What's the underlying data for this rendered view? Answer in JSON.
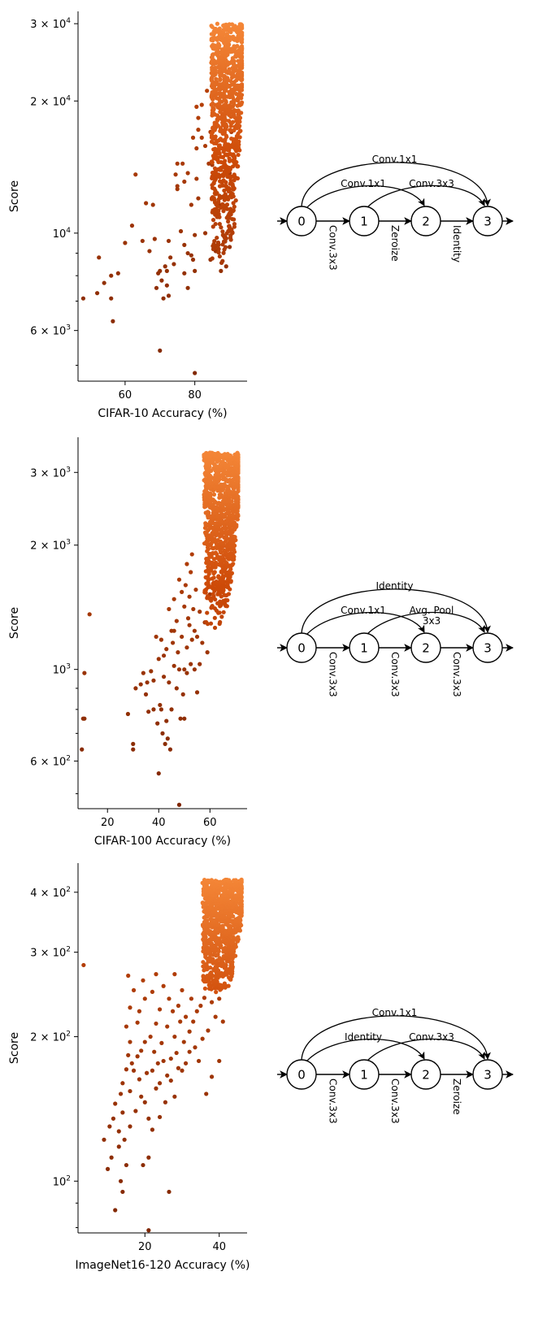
{
  "chart_data": [
    {
      "type": "scatter",
      "xlabel": "CIFAR-10 Accuracy (%)",
      "ylabel": "Score",
      "yscale": "log",
      "xlim": [
        46.5,
        95
      ],
      "ylim": [
        4600,
        32000
      ],
      "xticks": [
        {
          "v": 60,
          "label": "60"
        },
        {
          "v": 80,
          "label": "80"
        }
      ],
      "yticks": [
        {
          "v": 6000,
          "base": "6 × 10",
          "exp": "3"
        },
        {
          "v": 10000,
          "base": "10",
          "exp": "4"
        },
        {
          "v": 20000,
          "base": "2 × 10",
          "exp": "4"
        },
        {
          "v": 30000,
          "base": "3 × 10",
          "exp": "4"
        }
      ],
      "yminor": [
        5000,
        7000,
        8000,
        9000
      ],
      "cluster": {
        "x_range": [
          81,
          93.5
        ],
        "y_range": [
          8200,
          30000
        ]
      },
      "points": [
        [
          48,
          7100
        ],
        [
          52,
          7300
        ],
        [
          52.5,
          8800
        ],
        [
          54,
          7700
        ],
        [
          56,
          7100
        ],
        [
          56,
          8000
        ],
        [
          56.5,
          6300
        ],
        [
          58,
          8100
        ],
        [
          60,
          9500
        ],
        [
          62,
          10400
        ],
        [
          63,
          13600
        ],
        [
          65,
          9600
        ],
        [
          66,
          11700
        ],
        [
          67,
          9100
        ],
        [
          68,
          11600
        ],
        [
          68.5,
          9700
        ],
        [
          69,
          7500
        ],
        [
          69.5,
          8100
        ],
        [
          70,
          8200
        ],
        [
          70,
          5400
        ],
        [
          70.5,
          7800
        ],
        [
          71,
          7100
        ],
        [
          71.5,
          8400
        ],
        [
          72,
          8200
        ],
        [
          72,
          7600
        ],
        [
          72.5,
          7200
        ],
        [
          72.5,
          9600
        ],
        [
          73,
          8800
        ],
        [
          74,
          8500
        ],
        [
          74.5,
          13600
        ],
        [
          75,
          14400
        ],
        [
          75,
          12800
        ],
        [
          75,
          12600
        ],
        [
          76,
          10100
        ],
        [
          76.5,
          14400
        ],
        [
          77,
          9400
        ],
        [
          77,
          8100
        ],
        [
          77,
          13100
        ],
        [
          78,
          9000
        ],
        [
          78,
          7500
        ],
        [
          78,
          13700
        ],
        [
          79,
          8900
        ],
        [
          79,
          11600
        ],
        [
          79.5,
          8700
        ],
        [
          79.5,
          16500
        ],
        [
          80,
          9900
        ],
        [
          80,
          4800
        ],
        [
          80,
          8200
        ],
        [
          80.5,
          15600
        ],
        [
          80.5,
          19400
        ],
        [
          80.5,
          13300
        ],
        [
          81,
          12000
        ],
        [
          81,
          18300
        ],
        [
          81,
          17200
        ],
        [
          82,
          19600
        ],
        [
          82,
          16500
        ],
        [
          83,
          10000
        ],
        [
          83,
          15800
        ],
        [
          83.5,
          21100
        ],
        [
          84,
          14400
        ],
        [
          84.5,
          17000
        ],
        [
          84.5,
          8700
        ],
        [
          85,
          20300
        ],
        [
          85,
          14300
        ],
        [
          86,
          9100
        ],
        [
          86,
          13600
        ],
        [
          86,
          17400
        ],
        [
          86.5,
          13600
        ],
        [
          87,
          11600
        ],
        [
          87,
          19300
        ],
        [
          87,
          14000
        ],
        [
          87.5,
          8200
        ],
        [
          88,
          16900
        ],
        [
          88,
          12100
        ],
        [
          88.5,
          9800
        ],
        [
          89,
          8400
        ],
        [
          89.5,
          15900
        ],
        [
          90,
          9300
        ],
        [
          90,
          13700
        ],
        [
          90.5,
          17000
        ],
        [
          91,
          15000
        ],
        [
          92,
          17600
        ]
      ]
    },
    {
      "type": "scatter",
      "xlabel": "CIFAR-100 Accuracy (%)",
      "ylabel": "Score",
      "yscale": "log",
      "xlim": [
        8.5,
        74.5
      ],
      "ylim": [
        460,
        3650
      ],
      "xticks": [
        {
          "v": 20,
          "label": "20"
        },
        {
          "v": 40,
          "label": "40"
        },
        {
          "v": 60,
          "label": "60"
        }
      ],
      "yticks": [
        {
          "v": 600,
          "base": "6 × 10",
          "exp": "2"
        },
        {
          "v": 1000,
          "base": "10",
          "exp": "3"
        },
        {
          "v": 2000,
          "base": "2 × 10",
          "exp": "3"
        },
        {
          "v": 3000,
          "base": "3 × 10",
          "exp": "3"
        }
      ],
      "yminor": [
        500,
        700,
        800,
        900
      ],
      "cluster": {
        "x_range": [
          52,
          71
        ],
        "y_range": [
          1250,
          3350
        ]
      },
      "points": [
        [
          10,
          640
        ],
        [
          10.5,
          760
        ],
        [
          11,
          760
        ],
        [
          11,
          980
        ],
        [
          13,
          1360
        ],
        [
          28,
          780
        ],
        [
          30,
          640
        ],
        [
          30,
          660
        ],
        [
          31,
          900
        ],
        [
          33,
          920
        ],
        [
          34,
          980
        ],
        [
          35,
          870
        ],
        [
          35.5,
          930
        ],
        [
          36,
          790
        ],
        [
          37,
          990
        ],
        [
          38,
          800
        ],
        [
          38,
          940
        ],
        [
          39,
          1200
        ],
        [
          39.5,
          740
        ],
        [
          40,
          1060
        ],
        [
          40,
          560
        ],
        [
          40.5,
          820
        ],
        [
          41,
          1180
        ],
        [
          41,
          800
        ],
        [
          41.5,
          700
        ],
        [
          42,
          1080
        ],
        [
          42,
          960
        ],
        [
          42.5,
          660
        ],
        [
          43,
          1120
        ],
        [
          43,
          750
        ],
        [
          43.5,
          680
        ],
        [
          44,
          1400
        ],
        [
          44,
          930
        ],
        [
          44.5,
          640
        ],
        [
          45,
          1240
        ],
        [
          45,
          800
        ],
        [
          45.5,
          1160
        ],
        [
          46,
          1020
        ],
        [
          46,
          1240
        ],
        [
          46,
          1480
        ],
        [
          47,
          1310
        ],
        [
          47,
          900
        ],
        [
          47.5,
          1100
        ],
        [
          48,
          1650
        ],
        [
          48,
          470
        ],
        [
          48,
          1000
        ],
        [
          48.5,
          760
        ],
        [
          49,
          1200
        ],
        [
          49,
          1540
        ],
        [
          49.5,
          870
        ],
        [
          50,
          1420
        ],
        [
          50,
          760
        ],
        [
          50,
          1000
        ],
        [
          50.5,
          1600
        ],
        [
          51,
          1800
        ],
        [
          51,
          1130
        ],
        [
          51,
          980
        ],
        [
          51.5,
          1330
        ],
        [
          52,
          1280
        ],
        [
          52,
          1500
        ],
        [
          52.5,
          1720
        ],
        [
          52.5,
          1030
        ],
        [
          53,
          1900
        ],
        [
          53,
          1180
        ],
        [
          53.5,
          1400
        ],
        [
          54,
          1000
        ],
        [
          54,
          1240
        ],
        [
          54.5,
          1560
        ],
        [
          55,
          1200
        ],
        [
          55,
          880
        ],
        [
          56,
          1030
        ],
        [
          56,
          1380
        ],
        [
          57,
          1160
        ],
        [
          58,
          1300
        ],
        [
          59,
          1100
        ],
        [
          60,
          1520
        ]
      ]
    },
    {
      "type": "scatter",
      "xlabel": "ImageNet16-120 Accuracy (%)",
      "ylabel": "Score",
      "yscale": "log",
      "xlim": [
        2,
        47.5
      ],
      "ylim": [
        78,
        460
      ],
      "xticks": [
        {
          "v": 20,
          "label": "20"
        },
        {
          "v": 40,
          "label": "40"
        }
      ],
      "yticks": [
        {
          "v": 100,
          "base": "10",
          "exp": "2"
        },
        {
          "v": 200,
          "base": "2 × 10",
          "exp": "2"
        },
        {
          "v": 300,
          "base": "3 × 10",
          "exp": "2"
        },
        {
          "v": 400,
          "base": "4 × 10",
          "exp": "2"
        }
      ],
      "yminor": [
        80,
        90,
        500
      ],
      "cluster": {
        "x_range": [
          31,
          46
        ],
        "y_range": [
          245,
          425
        ]
      },
      "points": [
        [
          3.5,
          282
        ],
        [
          9,
          122
        ],
        [
          10,
          106
        ],
        [
          10.5,
          130
        ],
        [
          11,
          112
        ],
        [
          11.5,
          135
        ],
        [
          12,
          87
        ],
        [
          12,
          145
        ],
        [
          13,
          127
        ],
        [
          13,
          118
        ],
        [
          13.5,
          100
        ],
        [
          13.5,
          152
        ],
        [
          14,
          95
        ],
        [
          14,
          139
        ],
        [
          14,
          160
        ],
        [
          14.5,
          122
        ],
        [
          15,
          108
        ],
        [
          15,
          171
        ],
        [
          15,
          210
        ],
        [
          15.5,
          183
        ],
        [
          15.5,
          268
        ],
        [
          16,
          130
        ],
        [
          16,
          154
        ],
        [
          16,
          195
        ],
        [
          16,
          230
        ],
        [
          16.5,
          176
        ],
        [
          17,
          170
        ],
        [
          17,
          250
        ],
        [
          17.5,
          140
        ],
        [
          18,
          214
        ],
        [
          18,
          182
        ],
        [
          18.5,
          163
        ],
        [
          18.5,
          226
        ],
        [
          19,
          187
        ],
        [
          19,
          150
        ],
        [
          19.5,
          108
        ],
        [
          19.5,
          262
        ],
        [
          20,
          146
        ],
        [
          20,
          195
        ],
        [
          20,
          240
        ],
        [
          20.5,
          168
        ],
        [
          21,
          112
        ],
        [
          21,
          79
        ],
        [
          21,
          135
        ],
        [
          21.5,
          200
        ],
        [
          22,
          170
        ],
        [
          22,
          128
        ],
        [
          22,
          248
        ],
        [
          22.5,
          186
        ],
        [
          23,
          156
        ],
        [
          23,
          213
        ],
        [
          23,
          270
        ],
        [
          23.5,
          176
        ],
        [
          24,
          160
        ],
        [
          24,
          228
        ],
        [
          24,
          136
        ],
        [
          24.5,
          194
        ],
        [
          25,
          178
        ],
        [
          25,
          255
        ],
        [
          25.5,
          146
        ],
        [
          26,
          210
        ],
        [
          26,
          166
        ],
        [
          26.5,
          95
        ],
        [
          26.5,
          240
        ],
        [
          27,
          180
        ],
        [
          27,
          162
        ],
        [
          27.5,
          226
        ],
        [
          28,
          200
        ],
        [
          28,
          150
        ],
        [
          28,
          270
        ],
        [
          28.5,
          185
        ],
        [
          29,
          232
        ],
        [
          29,
          172
        ],
        [
          29.5,
          215
        ],
        [
          30,
          250
        ],
        [
          30,
          170
        ],
        [
          30.5,
          195
        ],
        [
          31,
          220
        ],
        [
          31,
          176
        ],
        [
          32,
          205
        ],
        [
          32,
          186
        ],
        [
          32.5,
          240
        ],
        [
          33,
          215
        ],
        [
          33.5,
          190
        ],
        [
          34,
          226
        ],
        [
          34.5,
          178
        ],
        [
          35,
          232
        ],
        [
          35.5,
          198
        ],
        [
          36,
          241
        ],
        [
          36.5,
          152
        ],
        [
          37,
          206
        ],
        [
          38,
          236
        ],
        [
          38,
          165
        ],
        [
          39,
          220
        ],
        [
          40,
          240
        ],
        [
          40,
          178
        ],
        [
          41,
          215
        ]
      ]
    }
  ],
  "diagrams": [
    {
      "nodes": [
        "0",
        "1",
        "2",
        "3"
      ],
      "chain_ops": [
        "Conv.3x3",
        "Zeroize",
        "Identity"
      ],
      "arc_0_3": "Conv.1x1",
      "arc_0_2": "Conv.1x1",
      "arc_1_3": "Conv.3x3"
    },
    {
      "nodes": [
        "0",
        "1",
        "2",
        "3"
      ],
      "chain_ops": [
        "Conv.3x3",
        "Conv.3x3",
        "Conv.3x3"
      ],
      "arc_0_3": "Identity",
      "arc_0_2": "Conv.1x1",
      "arc_1_3": "Avg. Pool\n3x3"
    },
    {
      "nodes": [
        "0",
        "1",
        "2",
        "3"
      ],
      "chain_ops": [
        "Conv.3x3",
        "Conv.3x3",
        "Zeroize"
      ],
      "arc_0_3": "Conv.1x1",
      "arc_0_2": "Identity",
      "arc_1_3": "Conv.3x3"
    }
  ]
}
